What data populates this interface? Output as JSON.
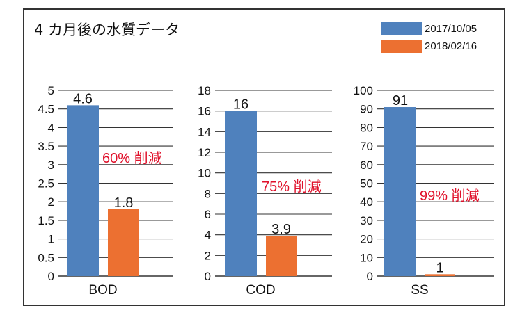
{
  "title": "4 カ月後の水質データ",
  "colors": {
    "series1": "#4f81bd",
    "series2": "#ec7031",
    "reduction": "#e0102a",
    "grid": "#333333"
  },
  "legend": [
    {
      "label": "2017/10/05"
    },
    {
      "label": "2018/02/16"
    }
  ],
  "chart_data": [
    {
      "type": "bar",
      "category": "BOD",
      "series": [
        {
          "name": "2017/10/05",
          "values": [
            4.6
          ],
          "label": "4.6"
        },
        {
          "name": "2018/02/16",
          "values": [
            1.8
          ],
          "label": "1.8"
        }
      ],
      "ylim": [
        0,
        5
      ],
      "ticks": [
        "0",
        "0.5",
        "1",
        "1.5",
        "2",
        "2.5",
        "3",
        "3.5",
        "4",
        "4.5",
        "5"
      ],
      "tick_values": [
        0,
        0.5,
        1,
        1.5,
        2,
        2.5,
        3,
        3.5,
        4,
        4.5,
        5
      ],
      "annotation": "60% 削減"
    },
    {
      "type": "bar",
      "category": "COD",
      "series": [
        {
          "name": "2017/10/05",
          "values": [
            16
          ],
          "label": "16"
        },
        {
          "name": "2018/02/16",
          "values": [
            3.9
          ],
          "label": "3.9"
        }
      ],
      "ylim": [
        0,
        18
      ],
      "ticks": [
        "0",
        "2",
        "4",
        "6",
        "8",
        "10",
        "12",
        "14",
        "16",
        "18"
      ],
      "tick_values": [
        0,
        2,
        4,
        6,
        8,
        10,
        12,
        14,
        16,
        18
      ],
      "annotation": "75% 削減"
    },
    {
      "type": "bar",
      "category": "SS",
      "series": [
        {
          "name": "2017/10/05",
          "values": [
            91
          ],
          "label": "91"
        },
        {
          "name": "2018/02/16",
          "values": [
            1
          ],
          "label": "1"
        }
      ],
      "ylim": [
        0,
        100
      ],
      "ticks": [
        "0",
        "10",
        "20",
        "30",
        "40",
        "50",
        "60",
        "70",
        "80",
        "90",
        "100"
      ],
      "tick_values": [
        0,
        10,
        20,
        30,
        40,
        50,
        60,
        70,
        80,
        90,
        100
      ],
      "annotation": "99% 削減"
    }
  ]
}
